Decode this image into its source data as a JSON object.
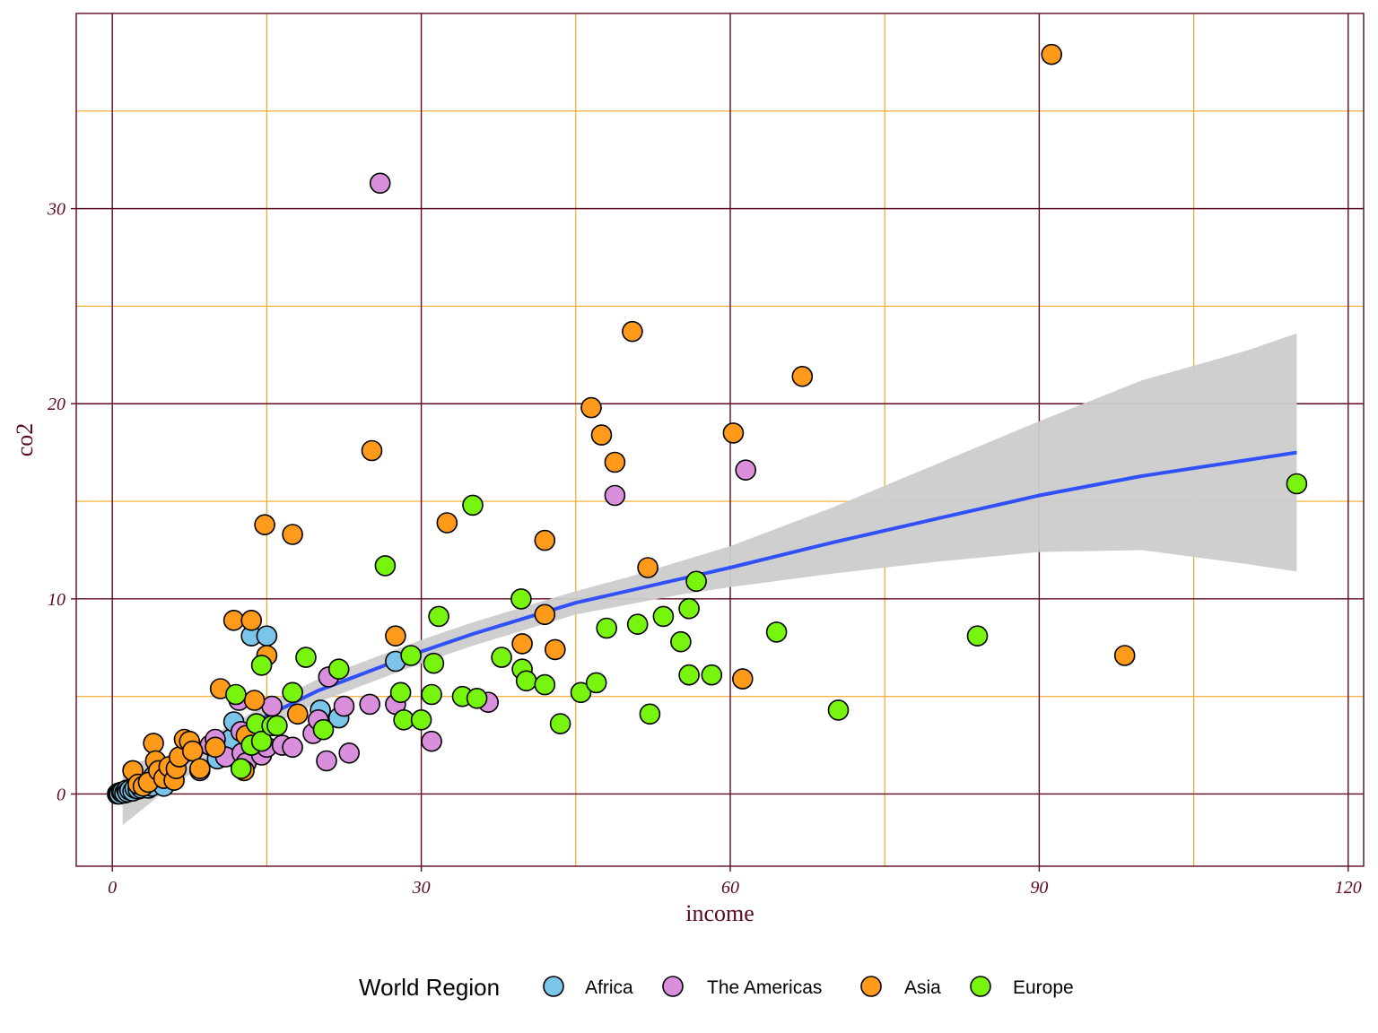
{
  "chart_data": {
    "type": "scatter",
    "title": "",
    "xlabel": "income",
    "ylabel": "co2",
    "xlim": [
      -3.5,
      121.5
    ],
    "ylim": [
      -3.7,
      40
    ],
    "x_major_ticks": [
      0,
      30,
      60,
      90,
      120
    ],
    "x_minor_ticks": [
      15,
      45,
      75,
      105
    ],
    "y_major_ticks": [
      0,
      10,
      20,
      30
    ],
    "y_minor_ticks": [
      5,
      15,
      25,
      35
    ],
    "grid": true,
    "legend": {
      "title": "World Region",
      "position": "bottom"
    },
    "colors": {
      "major_grid": "#5c0a1e",
      "minor_grid": "#f5a623",
      "axis_text": "#5c0a1e",
      "trend_line": "#3050f8",
      "confidence_band": "#cccccc",
      "point_outline": "#000000"
    },
    "series": [
      {
        "name": "Africa",
        "color": "#7cc5ea",
        "points": [
          [
            0.5,
            0.0
          ],
          [
            0.6,
            0.05
          ],
          [
            0.7,
            0.0
          ],
          [
            0.9,
            0.1
          ],
          [
            1.0,
            0.1
          ],
          [
            1.2,
            0.05
          ],
          [
            1.4,
            0.2
          ],
          [
            1.5,
            0.1
          ],
          [
            1.7,
            0.2
          ],
          [
            2.0,
            0.15
          ],
          [
            2.2,
            0.3
          ],
          [
            2.5,
            0.25
          ],
          [
            2.8,
            0.3
          ],
          [
            3.0,
            0.5
          ],
          [
            3.5,
            0.3
          ],
          [
            3.8,
            0.4
          ],
          [
            4.0,
            0.9
          ],
          [
            4.5,
            0.7
          ],
          [
            5.0,
            0.4
          ],
          [
            10.2,
            1.8
          ],
          [
            11.5,
            2.8
          ],
          [
            11.8,
            3.7
          ],
          [
            13.5,
            8.1
          ],
          [
            15.0,
            8.1
          ],
          [
            20.2,
            4.3
          ],
          [
            22.0,
            3.9
          ],
          [
            27.5,
            6.8
          ]
        ]
      },
      {
        "name": "The Americas",
        "color": "#d98fdc",
        "points": [
          [
            8.5,
            1.2
          ],
          [
            9.5,
            2.5
          ],
          [
            10.0,
            2.8
          ],
          [
            11.0,
            1.9
          ],
          [
            12.3,
            4.8
          ],
          [
            12.5,
            3.2
          ],
          [
            12.6,
            2.1
          ],
          [
            13.0,
            1.6
          ],
          [
            14.5,
            2.0
          ],
          [
            15.0,
            2.4
          ],
          [
            15.5,
            4.5
          ],
          [
            16.5,
            2.5
          ],
          [
            17.5,
            2.4
          ],
          [
            19.5,
            3.1
          ],
          [
            20.0,
            3.8
          ],
          [
            20.8,
            1.7
          ],
          [
            21.0,
            6.0
          ],
          [
            22.5,
            4.5
          ],
          [
            23.0,
            2.1
          ],
          [
            25.0,
            4.6
          ],
          [
            26.0,
            31.3
          ],
          [
            27.5,
            4.6
          ],
          [
            31.0,
            2.7
          ],
          [
            36.5,
            4.7
          ],
          [
            48.8,
            15.3
          ],
          [
            61.5,
            16.6
          ]
        ]
      },
      {
        "name": "Asia",
        "color": "#ff9a1a",
        "points": [
          [
            2.0,
            1.2
          ],
          [
            2.5,
            0.5
          ],
          [
            3.0,
            0.4
          ],
          [
            3.5,
            0.6
          ],
          [
            4.0,
            2.6
          ],
          [
            4.2,
            1.7
          ],
          [
            4.5,
            1.2
          ],
          [
            5.0,
            0.8
          ],
          [
            5.5,
            1.4
          ],
          [
            6.0,
            0.7
          ],
          [
            6.2,
            1.3
          ],
          [
            6.5,
            1.9
          ],
          [
            7.0,
            2.8
          ],
          [
            7.5,
            2.7
          ],
          [
            7.8,
            2.2
          ],
          [
            8.5,
            1.3
          ],
          [
            10.0,
            2.4
          ],
          [
            10.5,
            5.4
          ],
          [
            11.8,
            8.9
          ],
          [
            12.8,
            1.2
          ],
          [
            13.0,
            3.0
          ],
          [
            13.5,
            8.9
          ],
          [
            13.8,
            4.8
          ],
          [
            14.8,
            13.8
          ],
          [
            15.0,
            7.1
          ],
          [
            17.5,
            13.3
          ],
          [
            18.0,
            4.1
          ],
          [
            25.2,
            17.6
          ],
          [
            27.5,
            8.1
          ],
          [
            32.5,
            13.9
          ],
          [
            39.8,
            7.7
          ],
          [
            42.0,
            9.2
          ],
          [
            42.0,
            13.0
          ],
          [
            43.0,
            7.4
          ],
          [
            46.5,
            19.8
          ],
          [
            47.5,
            18.4
          ],
          [
            48.8,
            17.0
          ],
          [
            50.5,
            23.7
          ],
          [
            52.0,
            11.6
          ],
          [
            60.3,
            18.5
          ],
          [
            61.2,
            5.9
          ],
          [
            67.0,
            21.4
          ],
          [
            91.2,
            37.9
          ],
          [
            98.3,
            7.1
          ]
        ]
      },
      {
        "name": "Europe",
        "color": "#78f50f",
        "points": [
          [
            12.0,
            5.1
          ],
          [
            12.5,
            1.3
          ],
          [
            13.5,
            2.5
          ],
          [
            14.0,
            3.6
          ],
          [
            14.5,
            2.7
          ],
          [
            14.5,
            6.6
          ],
          [
            15.5,
            3.5
          ],
          [
            16.0,
            3.5
          ],
          [
            17.5,
            5.2
          ],
          [
            18.8,
            7.0
          ],
          [
            20.5,
            3.3
          ],
          [
            22.0,
            6.4
          ],
          [
            26.5,
            11.7
          ],
          [
            28.0,
            5.2
          ],
          [
            28.3,
            3.8
          ],
          [
            29.0,
            7.1
          ],
          [
            30.0,
            3.8
          ],
          [
            31.0,
            5.1
          ],
          [
            31.2,
            6.7
          ],
          [
            31.7,
            9.1
          ],
          [
            34.0,
            5.0
          ],
          [
            35.0,
            14.8
          ],
          [
            35.4,
            4.9
          ],
          [
            37.8,
            7.0
          ],
          [
            39.7,
            10.0
          ],
          [
            39.8,
            6.4
          ],
          [
            40.2,
            5.8
          ],
          [
            42.0,
            5.6
          ],
          [
            43.5,
            3.6
          ],
          [
            45.5,
            5.2
          ],
          [
            47.0,
            5.7
          ],
          [
            48.0,
            8.5
          ],
          [
            51.0,
            8.7
          ],
          [
            52.2,
            4.1
          ],
          [
            53.5,
            9.1
          ],
          [
            55.2,
            7.8
          ],
          [
            56.0,
            6.1
          ],
          [
            56.0,
            9.5
          ],
          [
            56.7,
            10.9
          ],
          [
            58.2,
            6.1
          ],
          [
            64.5,
            8.3
          ],
          [
            70.5,
            4.3
          ],
          [
            84.0,
            8.1
          ],
          [
            115.0,
            15.9
          ]
        ]
      }
    ],
    "trend": {
      "method": "loess",
      "x": [
        1,
        5,
        10,
        15,
        20,
        25,
        30,
        35,
        40,
        45,
        50,
        55,
        60,
        70,
        80,
        90,
        100,
        110,
        115
      ],
      "y": [
        0.2,
        1.0,
        2.5,
        4.0,
        5.3,
        6.3,
        7.3,
        8.2,
        9.0,
        9.8,
        10.4,
        11.0,
        11.6,
        12.9,
        14.1,
        15.3,
        16.3,
        17.1,
        17.5
      ],
      "upper": [
        1.5,
        1.9,
        3.1,
        4.6,
        5.9,
        6.9,
        7.9,
        8.8,
        9.6,
        10.4,
        11.1,
        11.9,
        12.7,
        14.7,
        16.9,
        19.1,
        21.2,
        22.7,
        23.6
      ],
      "lower": [
        -1.6,
        0.1,
        1.9,
        3.4,
        4.7,
        5.7,
        6.7,
        7.6,
        8.4,
        9.2,
        9.7,
        10.2,
        10.6,
        11.3,
        11.9,
        12.4,
        12.5,
        11.8,
        11.4
      ]
    }
  }
}
